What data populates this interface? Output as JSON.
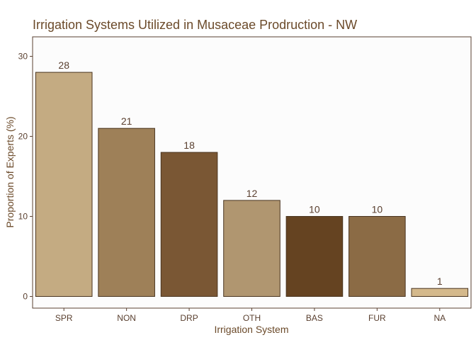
{
  "chart_data": {
    "type": "bar",
    "title": "Irrigation Systems Utilized in Musaceae Prodruction -  NW",
    "xlabel": "Irrigation System",
    "ylabel": "Proportion of Experts (%)",
    "categories": [
      "SPR",
      "NON",
      "DRP",
      "OTH",
      "BAS",
      "FUR",
      "NA"
    ],
    "values": [
      28,
      21,
      18,
      12,
      10,
      10,
      1
    ],
    "data_labels": [
      "28",
      "21",
      "18",
      "12",
      "10",
      "10",
      "1"
    ],
    "bar_colors": [
      "#c4ab82",
      "#9e8058",
      "#7a5734",
      "#b09670",
      "#654321",
      "#8b6b45",
      "#d4b98c"
    ],
    "ylim": [
      0,
      32
    ],
    "yticks": [
      0,
      10,
      20,
      30
    ],
    "ytick_labels": [
      "0",
      "10",
      "20",
      "30"
    ],
    "grid": false,
    "legend": "none",
    "colors": {
      "panel_background": "#fcfcfc",
      "panel_border": "#5a4030",
      "bar_outline": "#4a3520",
      "text": "#6b4a2a"
    }
  }
}
